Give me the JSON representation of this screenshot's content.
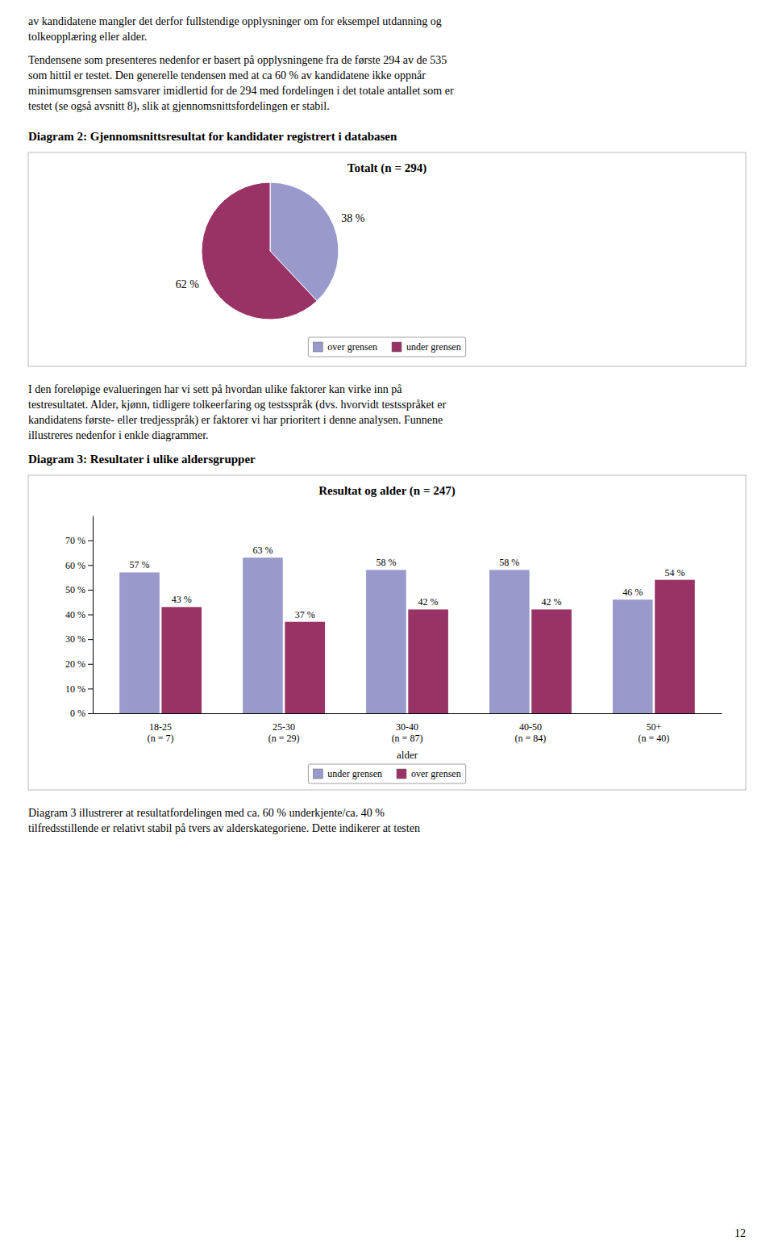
{
  "page": {
    "texts_top_1": [
      "av kandidatene mangler det derfor fullstendige opplysninger om for eksempel utdanning og",
      "tolkeopplæring eller alder."
    ],
    "texts_top_2": [
      "Tendensene som presenteres nedenfor er basert på opplysningene fra de første 294 av de 535",
      "som hittil er testet. Den generelle tendensen med at ca 60 % av kandidatene ikke oppnår",
      "minimumsgrensen samsvarer imidlertid for de 294 med fordelingen i det totale antallet som er",
      "testet (se også avsnitt 8), slik at gjennomsnittsfordelingen er stabil."
    ],
    "diagram_2_label": "Diagram 2: Gjennomsnittsresultat for kandidater registrert i databasen",
    "texts_middle": [
      "I den foreløpige evalueringen har vi sett på hvordan ulike faktorer kan virke inn på",
      "testresultatet. Alder, kjønn, tidligere tolkeerfaring og testsspråk (dvs. hvorvidt testsspråket er",
      "kandidatens første- eller tredjesspråk) er faktorer vi har prioritert i denne analysen. Funnene",
      "illustreres nedenfor i enkle diagrammer."
    ],
    "diagram_3_label": "Diagram 3: Resultater i ulike aldersgrupper",
    "texts_bottom": [
      "Diagram 3 illustrerer at resultatfordelingen med ca. 60 % underkjente/ca. 40 %",
      "tilfredsstillende er relativt stabil på tvers av alderskategoriene. Dette indikerer at testen"
    ],
    "page_number": "12"
  },
  "chart_data": [
    {
      "type": "pie",
      "title": "Totalt (n = 294)",
      "categories": [
        "over grensen",
        "under grensen"
      ],
      "values": [
        38,
        62
      ],
      "value_labels": [
        "38 %",
        "62 %"
      ],
      "colors": [
        "#9999cc",
        "#993366"
      ],
      "data_labels": true,
      "legend": "bottom"
    },
    {
      "type": "bar",
      "title": "Resultat og alder (n = 247)",
      "x_label": "alder",
      "categories": [
        "18-25\n(n = 7)",
        "25-30\n(n = 29)",
        "30-40\n(n = 87)",
        "40-50\n(n = 84)",
        "50+\n(n = 40)"
      ],
      "series": [
        {
          "name": "under grensen",
          "color": "#9999cc",
          "values": [
            57,
            63,
            58,
            58,
            46
          ],
          "value_labels": [
            "57 %",
            "63 %",
            "58 %",
            "58 %",
            "46 %"
          ]
        },
        {
          "name": "over grensen",
          "color": "#993366",
          "values": [
            43,
            37,
            42,
            42,
            54
          ],
          "value_labels": [
            "43 %",
            "37 %",
            "42 %",
            "42 %",
            "54 %"
          ]
        }
      ],
      "ylim": [
        0,
        80
      ],
      "yticks": [
        {
          "value": 0,
          "label": "0 %"
        },
        {
          "value": 10,
          "label": "10 %"
        },
        {
          "value": 20,
          "label": "20 %"
        },
        {
          "value": 30,
          "label": "30 %"
        },
        {
          "value": 40,
          "label": "40 %"
        },
        {
          "value": 50,
          "label": "50 %"
        },
        {
          "value": 60,
          "label": "60 %"
        },
        {
          "value": 70,
          "label": "70 %"
        }
      ],
      "grid": false,
      "data_labels": true,
      "legend": "bottom"
    }
  ]
}
